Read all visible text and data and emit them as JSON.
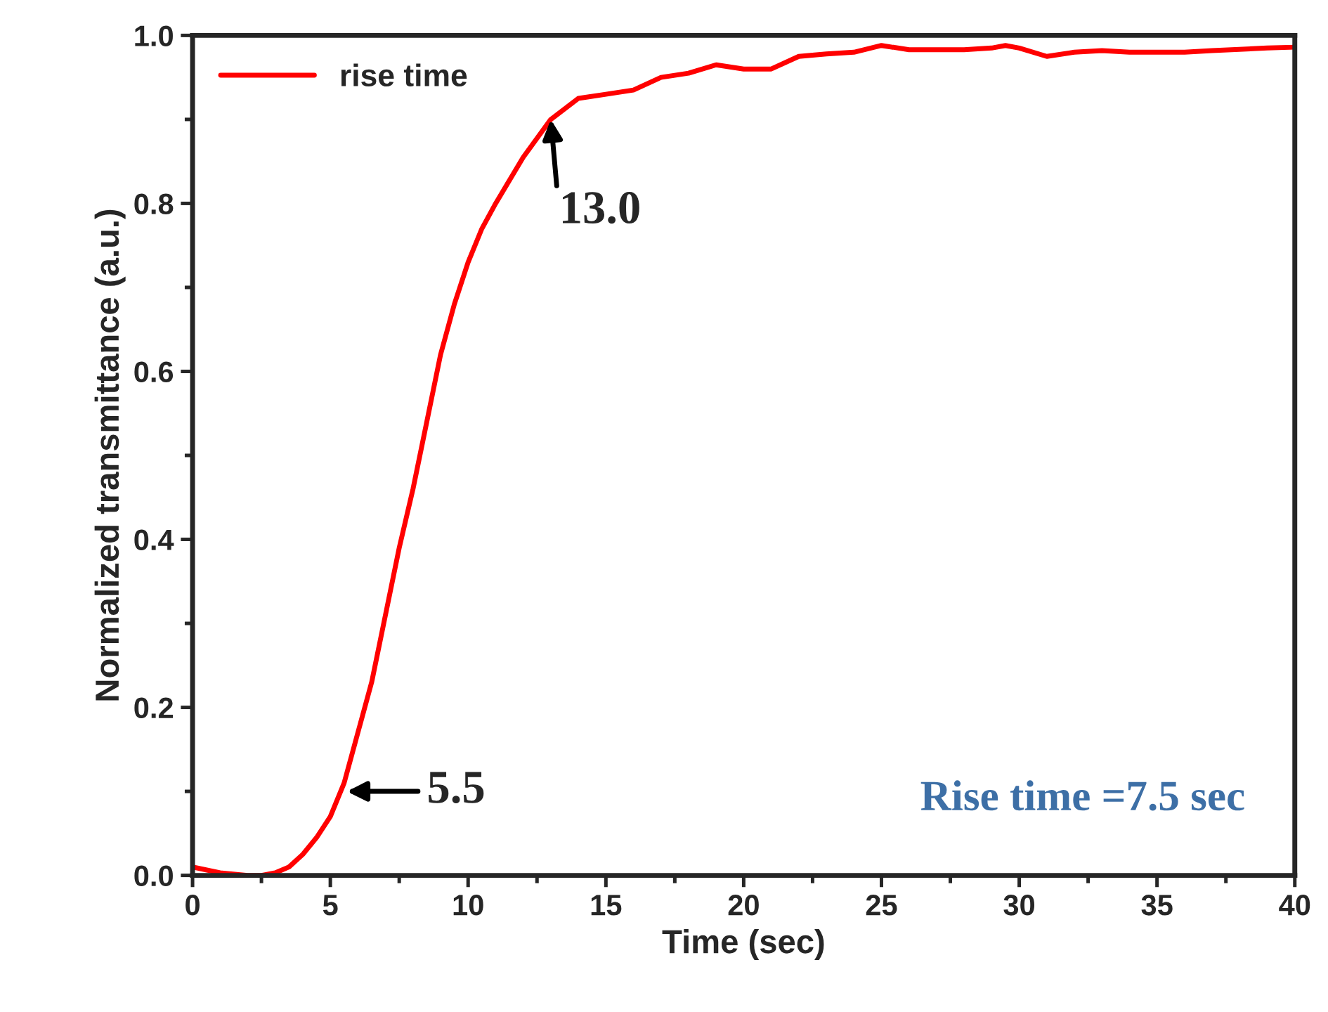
{
  "chart_data": {
    "type": "line",
    "xlabel": "Time (sec)",
    "ylabel": "Normalized transmittance (a.u.)",
    "xlim": [
      0,
      40
    ],
    "xticks": [
      0,
      5,
      10,
      15,
      20,
      25,
      30,
      35,
      40
    ],
    "ylim": [
      0,
      1.0
    ],
    "yticks": [
      {
        "value": 0,
        "label": "0.0"
      },
      {
        "value": 0.2,
        "label": "0.2"
      },
      {
        "value": 0.4,
        "label": "0.4"
      },
      {
        "value": 0.6,
        "label": "0.6"
      },
      {
        "value": 0.8,
        "label": "0.8"
      },
      {
        "value": 1.0,
        "label": "1.0"
      }
    ],
    "grid": false,
    "legend": "top left",
    "marker": "none",
    "line_style": "solid",
    "series": [
      {
        "name": "rise time",
        "color": "#ff0000",
        "x": [
          0,
          1,
          2,
          2.5,
          3,
          3.5,
          4,
          4.5,
          5,
          5.5,
          6,
          6.5,
          7,
          7.5,
          8,
          8.5,
          9,
          9.5,
          10,
          10.5,
          11,
          12,
          13,
          14,
          15,
          16,
          17,
          18,
          19,
          20,
          21,
          22,
          23,
          24,
          25,
          26,
          28,
          29,
          29.5,
          30,
          31,
          32,
          33,
          34,
          36,
          37,
          39,
          40
        ],
        "values": [
          0.01,
          0.003,
          0.0,
          0.0,
          0.003,
          0.01,
          0.025,
          0.045,
          0.07,
          0.11,
          0.17,
          0.23,
          0.31,
          0.39,
          0.46,
          0.54,
          0.62,
          0.68,
          0.73,
          0.77,
          0.8,
          0.855,
          0.9,
          0.925,
          0.93,
          0.935,
          0.95,
          0.955,
          0.965,
          0.96,
          0.96,
          0.975,
          0.978,
          0.98,
          0.988,
          0.983,
          0.983,
          0.985,
          0.988,
          0.985,
          0.975,
          0.98,
          0.982,
          0.98,
          0.98,
          0.982,
          0.985,
          0.986
        ]
      }
    ],
    "annotations": [
      {
        "text": "5.5",
        "x": 5.5,
        "y": 0.1
      },
      {
        "text": "13.0",
        "x": 13.0,
        "y": 0.9
      },
      "Rise time =7.5 sec"
    ]
  }
}
